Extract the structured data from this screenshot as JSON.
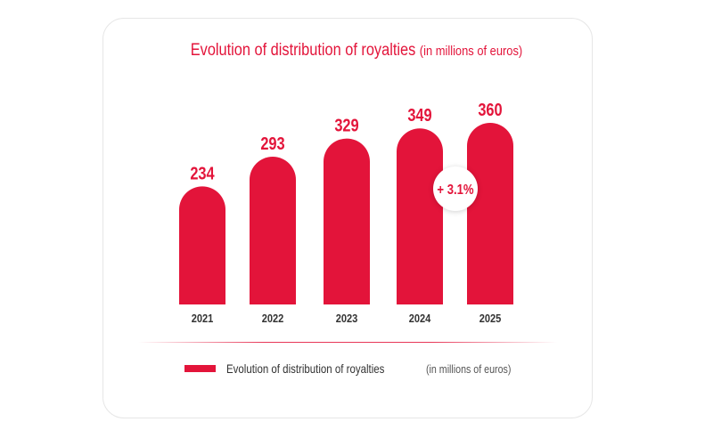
{
  "colors": {
    "accent": "#e3143a",
    "text": "#333333",
    "badge_bg": "#ffffff"
  },
  "chart_data": {
    "type": "bar",
    "title": "Evolution of distribution of royalties",
    "title_unit": "(in millions of euros)",
    "categories": [
      "2021",
      "2022",
      "2023",
      "2024",
      "2025"
    ],
    "series": [
      {
        "name": "Evolution of distribution of royalties",
        "values": [
          234,
          293,
          329,
          349,
          360
        ]
      }
    ],
    "value_labels": [
      "234",
      "293",
      "329",
      "349",
      "360"
    ],
    "annotation": "+ 3.1%",
    "legend_position": "bottom",
    "legend_unit": "(in millions of euros)",
    "grid": false,
    "ylim": [
      0,
      360
    ]
  }
}
